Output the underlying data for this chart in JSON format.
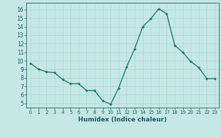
{
  "x": [
    0,
    1,
    2,
    3,
    4,
    5,
    6,
    7,
    8,
    9,
    10,
    11,
    12,
    13,
    14,
    15,
    16,
    17,
    18,
    19,
    20,
    21,
    22,
    23
  ],
  "y": [
    9.7,
    9.0,
    8.7,
    8.6,
    7.8,
    7.3,
    7.3,
    6.5,
    6.5,
    5.3,
    4.9,
    6.8,
    9.3,
    11.4,
    14.0,
    14.9,
    16.1,
    15.5,
    11.8,
    11.0,
    9.9,
    9.2,
    7.9,
    7.9
  ],
  "line_color": "#1a7a6e",
  "marker": "D",
  "marker_size": 1.8,
  "line_width": 1.0,
  "bg_color": "#c5e8e5",
  "grid_color": "#aed4d0",
  "xlabel": "Humidex (Indice chaleur)",
  "xlabel_fontsize": 6.5,
  "xlabel_color": "#1a5c5a",
  "tick_color": "#1a5c5a",
  "ylim": [
    4.5,
    16.8
  ],
  "xlim": [
    -0.5,
    23.5
  ],
  "yticks": [
    5,
    6,
    7,
    8,
    9,
    10,
    11,
    12,
    13,
    14,
    15,
    16
  ],
  "xticks": [
    0,
    1,
    2,
    3,
    4,
    5,
    6,
    7,
    8,
    9,
    10,
    11,
    12,
    13,
    14,
    15,
    16,
    17,
    18,
    19,
    20,
    21,
    22,
    23
  ],
  "tick_fontsize": 5.0,
  "ytick_fontsize": 5.5
}
